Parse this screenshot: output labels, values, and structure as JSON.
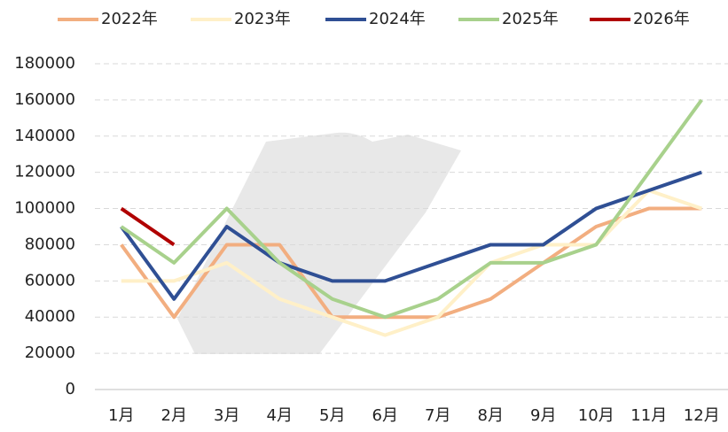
{
  "chart_data": {
    "type": "line",
    "categories": [
      "1月",
      "2月",
      "3月",
      "4月",
      "5月",
      "6月",
      "7月",
      "8月",
      "9月",
      "10月",
      "11月",
      "12月"
    ],
    "series": [
      {
        "name": "2022年",
        "color": "#f2ae80",
        "values": [
          80000,
          40000,
          80000,
          80000,
          40000,
          40000,
          40000,
          50000,
          70000,
          90000,
          100000,
          100000
        ]
      },
      {
        "name": "2023年",
        "color": "#fff0c8",
        "values": [
          60000,
          60000,
          70000,
          50000,
          40000,
          30000,
          40000,
          70000,
          80000,
          80000,
          110000,
          100000
        ]
      },
      {
        "name": "2024年",
        "color": "#2f4f94",
        "values": [
          90000,
          50000,
          90000,
          70000,
          60000,
          60000,
          70000,
          80000,
          80000,
          100000,
          110000,
          120000
        ]
      },
      {
        "name": "2025年",
        "color": "#a8d18c",
        "values": [
          90000,
          70000,
          100000,
          70000,
          50000,
          40000,
          50000,
          70000,
          70000,
          80000,
          120000,
          160000
        ]
      },
      {
        "name": "2026年",
        "color": "#b00000",
        "values": [
          100000,
          80000,
          null,
          null,
          null,
          null,
          null,
          null,
          null,
          null,
          null,
          null
        ]
      }
    ],
    "ylim": [
      0,
      180000
    ],
    "yticks": [
      0,
      20000,
      40000,
      60000,
      80000,
      100000,
      120000,
      140000,
      160000,
      180000
    ],
    "grid": true
  }
}
